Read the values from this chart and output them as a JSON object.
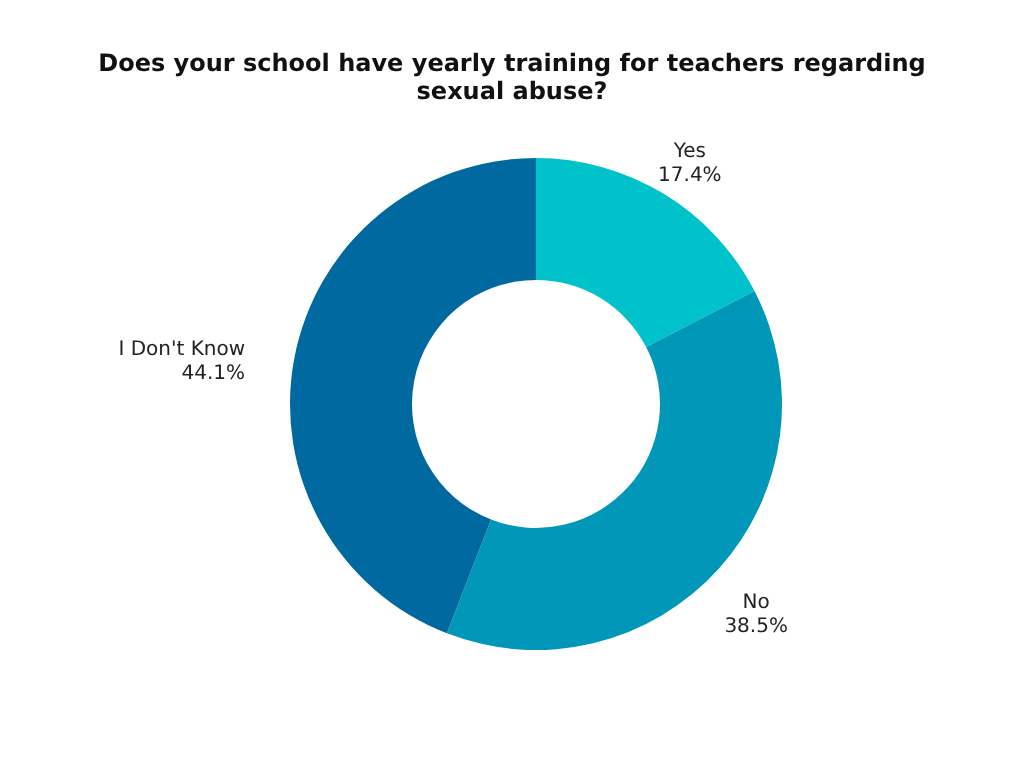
{
  "chart_data": {
    "type": "donut",
    "title": "Does your school have yearly training for teachers regarding sexual abuse?",
    "categories": [
      "Yes",
      "No",
      "I Don't Know"
    ],
    "values": [
      17.4,
      38.5,
      44.1
    ],
    "value_labels": [
      "17.4%",
      "38.5%",
      "44.1%"
    ],
    "colors": [
      "#00c2cb",
      "#0097b8",
      "#0069a0"
    ],
    "legend": false
  }
}
